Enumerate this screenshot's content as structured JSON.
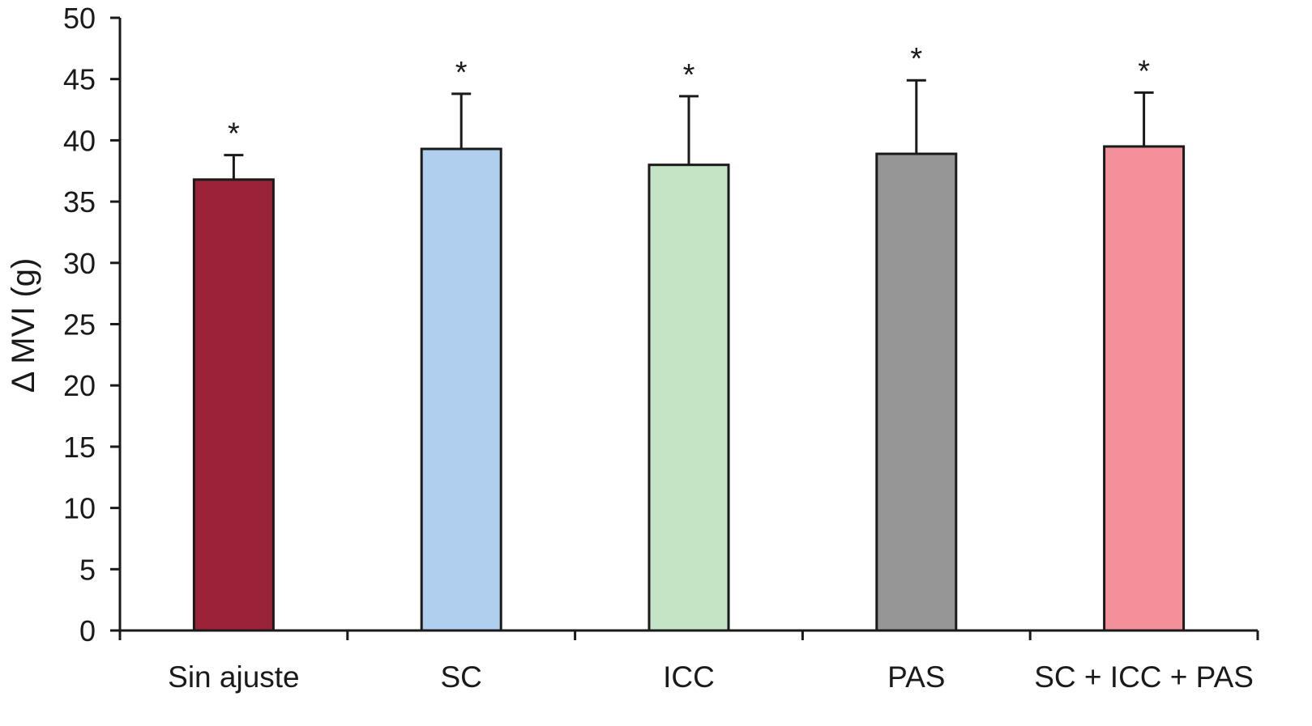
{
  "chart_data": {
    "type": "bar",
    "title": "",
    "xlabel": "",
    "ylabel": "Δ MVI (g)",
    "ylim": [
      0,
      50
    ],
    "yticks": [
      0,
      5,
      10,
      15,
      20,
      25,
      30,
      35,
      40,
      45,
      50
    ],
    "ytick_labels": [
      "0",
      "5",
      "10",
      "15",
      "20",
      "25",
      "30",
      "35",
      "40",
      "45",
      "50"
    ],
    "categories": [
      "Sin ajuste",
      "SC",
      "ICC",
      "PAS",
      "SC + ICC + PAS"
    ],
    "values": [
      36.8,
      39.3,
      38.0,
      38.9,
      39.5
    ],
    "error_upper": [
      2.0,
      4.5,
      5.6,
      6.0,
      4.4
    ],
    "annotations": [
      "*",
      "*",
      "*",
      "*",
      "*"
    ],
    "colors": [
      "#9b2339",
      "#b0cfee",
      "#c5e3c5",
      "#969696",
      "#f4909a"
    ],
    "edge_color": "#1a1a1a",
    "grid": false,
    "legend": "none"
  }
}
